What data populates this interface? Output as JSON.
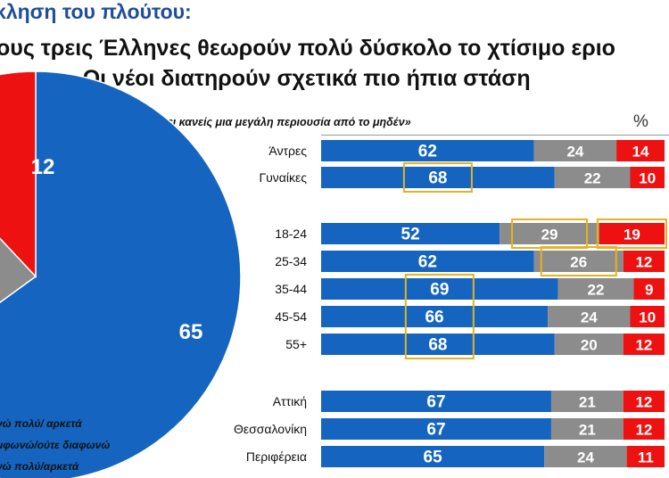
{
  "title": {
    "line1": "κληση του πλούτου:",
    "line2": "ους τρεις Έλληνες θεωρούν πολύ δύσκολο το χτίσιμο εριο",
    "line3": "ρα μας- Οι νέοι διατηρούν σχετικά πιο ήπια στάση"
  },
  "question": "λλάδα είναι ακατόρθωτο να χτίσει κανείς μια μεγάλη περιουσία από το μηδέν»",
  "percent_sign": "%",
  "legend": [
    {
      "label": "νώ πολύ/ αρκετά",
      "color": "#1565c0"
    },
    {
      "label": "μφωνώ/ούτε διαφωνώ",
      "color": "#8c8c8c"
    },
    {
      "label": "νώ πολύ/αρκετά",
      "color": "#ee1111"
    }
  ],
  "colors": {
    "agree": "#1565c0",
    "neutral": "#8c8c8c",
    "disagree": "#ee1111",
    "highlight": "#e8b21c"
  },
  "chart_data": [
    {
      "type": "pie",
      "slices": [
        {
          "name": "Συμφωνώ πολύ/ αρκετά",
          "value": 65
        },
        {
          "name": "Ούτε συμφωνώ/ούτε διαφωνώ",
          "value": 23
        },
        {
          "name": "Διαφωνώ πολύ/αρκετά",
          "value": 12
        }
      ],
      "labels": [
        "65",
        "12"
      ]
    },
    {
      "type": "bar",
      "orientation": "horizontal-stacked-100",
      "categories": [
        "Άντρες",
        "Γυναίκες",
        "18-24",
        "25-34",
        "35-44",
        "45-54",
        "55+",
        "Αττική",
        "Θεσσαλονίκη",
        "Περιφέρεια"
      ],
      "series": [
        {
          "name": "Συμφωνώ πολύ/ αρκετά",
          "values": [
            62,
            68,
            52,
            62,
            69,
            66,
            68,
            67,
            67,
            65
          ]
        },
        {
          "name": "Ούτε συμφωνώ/ούτε διαφωνώ",
          "values": [
            24,
            22,
            29,
            26,
            22,
            24,
            20,
            21,
            21,
            24
          ]
        },
        {
          "name": "Διαφωνώ πολύ/αρκετά",
          "values": [
            14,
            10,
            19,
            12,
            9,
            10,
            12,
            12,
            12,
            11
          ]
        }
      ],
      "highlights": [
        {
          "series": 0,
          "categories": [
            "Γυναίκες"
          ]
        },
        {
          "series": 1,
          "categories": [
            "18-24"
          ]
        },
        {
          "series": 2,
          "categories": [
            "18-24"
          ]
        },
        {
          "series": 1,
          "categories": [
            "25-34"
          ]
        },
        {
          "series": 0,
          "categories": [
            "35-44",
            "45-54",
            "55+"
          ]
        }
      ],
      "xlim": [
        0,
        100
      ]
    }
  ]
}
